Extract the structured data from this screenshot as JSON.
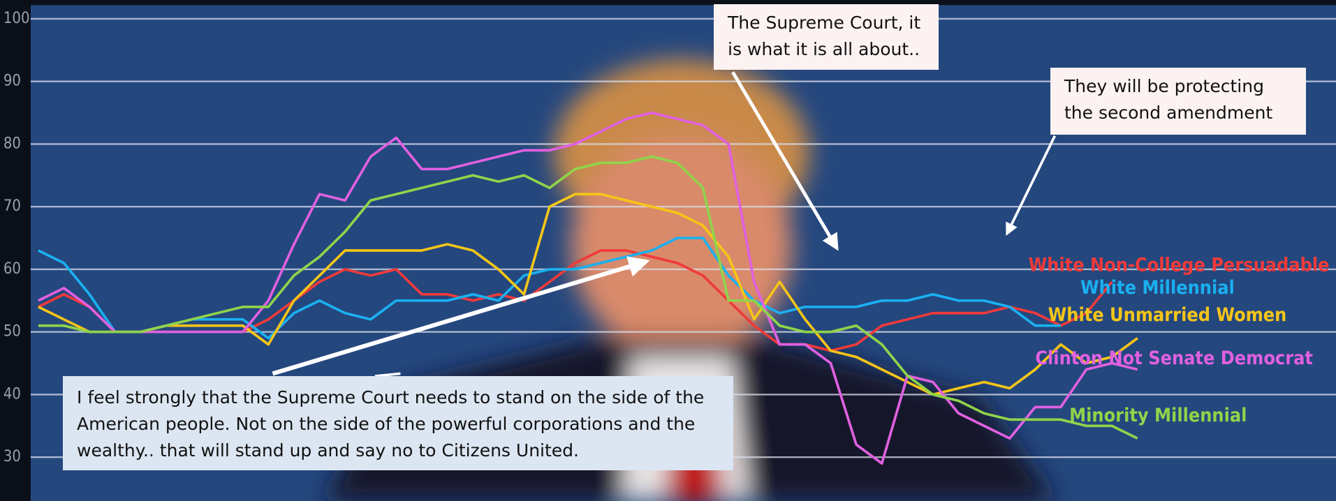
{
  "chart_data": {
    "type": "line",
    "ylim": [
      23,
      103
    ],
    "yticks": [
      30,
      40,
      50,
      60,
      70,
      80,
      90,
      100
    ],
    "grid": true,
    "series": [
      {
        "name": "White Non-College Persuadable",
        "color": "#f03a3a",
        "values": [
          54,
          56,
          54,
          50,
          50,
          50,
          50,
          50,
          50,
          52,
          55,
          58,
          60,
          59,
          60,
          56,
          56,
          55,
          56,
          55,
          58,
          61,
          63,
          63,
          62,
          61,
          59,
          55,
          51,
          48,
          48,
          47,
          48,
          51,
          52,
          53,
          53,
          53,
          54,
          53,
          51,
          53,
          58,
          null
        ]
      },
      {
        "name": "White Millennial",
        "color": "#1ab0f0",
        "values": [
          63,
          61,
          56,
          50,
          50,
          51,
          52,
          52,
          52,
          49,
          53,
          55,
          53,
          52,
          55,
          55,
          55,
          56,
          55,
          59,
          60,
          60,
          61,
          62,
          63,
          65,
          65,
          59,
          55,
          53,
          54,
          54,
          54,
          55,
          55,
          56,
          55,
          55,
          54,
          51,
          51,
          null,
          null,
          null
        ]
      },
      {
        "name": "White Unmarried Women",
        "color": "#f5c518",
        "values": [
          54,
          52,
          50,
          50,
          50,
          51,
          51,
          51,
          51,
          48,
          55,
          59,
          63,
          63,
          63,
          63,
          64,
          63,
          60,
          56,
          70,
          72,
          72,
          71,
          70,
          69,
          67,
          62,
          52,
          58,
          52,
          47,
          46,
          44,
          42,
          40,
          41,
          42,
          41,
          44,
          48,
          45,
          46,
          49
        ]
      },
      {
        "name": "Clinton Not Senate Democrat",
        "color": "#e060e0",
        "values": [
          55,
          57,
          54,
          50,
          50,
          50,
          50,
          50,
          50,
          55,
          64,
          72,
          71,
          78,
          81,
          76,
          76,
          77,
          78,
          79,
          79,
          80,
          82,
          84,
          85,
          84,
          83,
          80,
          58,
          48,
          48,
          45,
          32,
          29,
          43,
          42,
          37,
          35,
          33,
          38,
          38,
          44,
          45,
          44
        ]
      },
      {
        "name": "Minority Millennial",
        "color": "#8fd44a",
        "values": [
          51,
          51,
          50,
          50,
          50,
          51,
          52,
          53,
          54,
          54,
          59,
          62,
          66,
          71,
          72,
          73,
          74,
          75,
          74,
          75,
          73,
          76,
          77,
          77,
          78,
          77,
          73,
          55,
          55,
          51,
          50,
          50,
          51,
          48,
          43,
          40,
          39,
          37,
          36,
          36,
          36,
          35,
          35,
          33
        ]
      }
    ],
    "annotations": [
      "The Supreme Court, it is what it is all about..",
      "They will be protecting the second amendment",
      "I feel strongly that the Supreme Court needs to stand on the side of the American people. Not on the side of the powerful corporations and the wealthy.. that will stand up and say no to Citizens United."
    ]
  }
}
